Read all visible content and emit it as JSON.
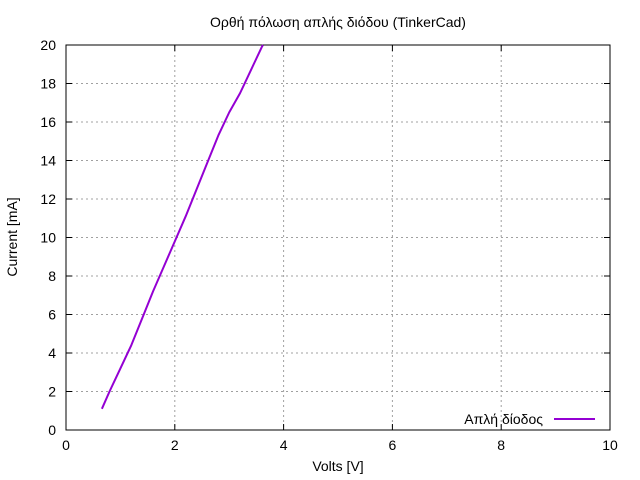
{
  "chart_data": {
    "type": "line",
    "title": "Ορθή πόλωση απλής διόδου (TinkerCad)",
    "xlabel": "Volts [V]",
    "ylabel": "Current [mA]",
    "xlim": [
      0,
      10
    ],
    "ylim": [
      0,
      20
    ],
    "xticks": [
      0,
      2,
      4,
      6,
      8,
      10
    ],
    "yticks": [
      0,
      2,
      4,
      6,
      8,
      10,
      12,
      14,
      16,
      18,
      20
    ],
    "grid": true,
    "grid_style": "dotted",
    "legend_position": "bottom-right",
    "series": [
      {
        "name": "Απλή δίοδος",
        "color": "#9400d3",
        "x": [
          0.66,
          0.8,
          1.0,
          1.2,
          1.4,
          1.6,
          1.8,
          2.0,
          2.2,
          2.4,
          2.6,
          2.8,
          3.0,
          3.2,
          3.4,
          3.6,
          3.62
        ],
        "y": [
          1.1,
          2.0,
          3.2,
          4.4,
          5.8,
          7.2,
          8.5,
          9.8,
          11.1,
          12.5,
          13.9,
          15.3,
          16.5,
          17.5,
          18.7,
          19.9,
          20.0
        ]
      }
    ]
  }
}
